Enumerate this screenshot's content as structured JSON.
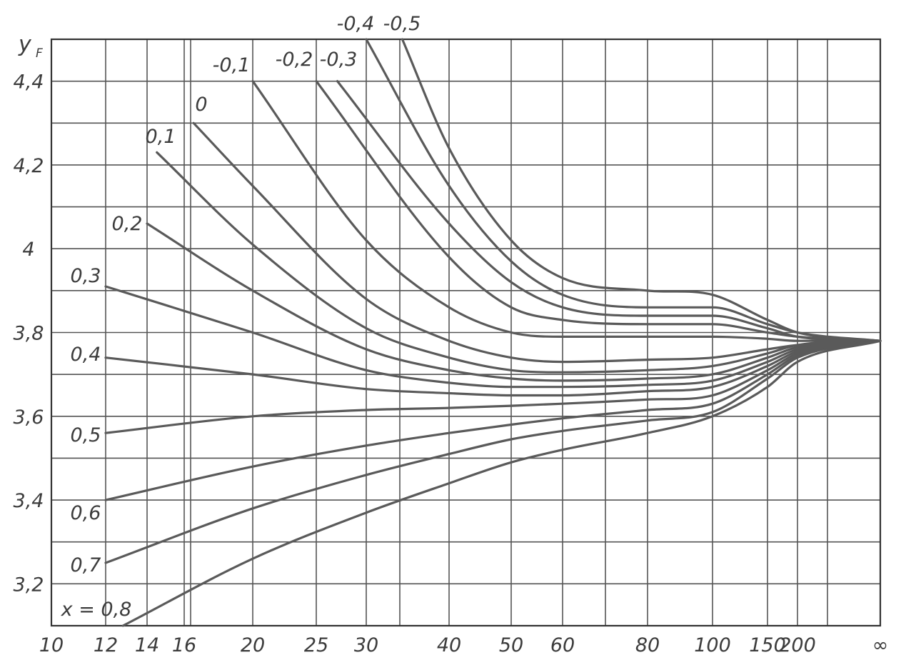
{
  "chart_data": {
    "type": "line",
    "title": "",
    "ylabel": "y",
    "ylabel_sub": "F",
    "xlabel": "",
    "x_scale": "piecewise",
    "ylim": [
      3.1,
      4.5
    ],
    "grid": true,
    "legend": "labels placed at curve starts",
    "x_tick_labels": [
      "10",
      "12",
      "14",
      "16",
      "20",
      "25",
      "30",
      "40",
      "50",
      "60",
      "80",
      "100",
      "150",
      "200",
      "∞"
    ],
    "y_tick_labels": [
      {
        "value": 3.2,
        "label": "3,2"
      },
      {
        "value": 3.4,
        "label": "3,4"
      },
      {
        "value": 3.6,
        "label": "3,6"
      },
      {
        "value": 3.8,
        "label": "3,8"
      },
      {
        "value": 4.0,
        "label": "4"
      },
      {
        "value": 4.2,
        "label": "4,2"
      },
      {
        "value": 4.4,
        "label": "4,4"
      }
    ],
    "series": [
      {
        "name": "-0,5",
        "points": [
          [
            34,
            4.5
          ],
          [
            40,
            4.24
          ],
          [
            50,
            4.02
          ],
          [
            60,
            3.93
          ],
          [
            80,
            3.9
          ],
          [
            100,
            3.89
          ],
          [
            150,
            3.83
          ],
          [
            200,
            3.8
          ],
          [
            "∞",
            3.78
          ]
        ]
      },
      {
        "name": "-0,4",
        "points": [
          [
            30,
            4.5
          ],
          [
            40,
            4.15
          ],
          [
            50,
            3.97
          ],
          [
            60,
            3.89
          ],
          [
            80,
            3.86
          ],
          [
            100,
            3.86
          ],
          [
            150,
            3.82
          ],
          [
            200,
            3.8
          ],
          [
            "∞",
            3.78
          ]
        ]
      },
      {
        "name": "-0,3",
        "points": [
          [
            27,
            4.4
          ],
          [
            40,
            4.06
          ],
          [
            50,
            3.92
          ],
          [
            60,
            3.86
          ],
          [
            80,
            3.84
          ],
          [
            100,
            3.84
          ],
          [
            150,
            3.81
          ],
          [
            200,
            3.79
          ],
          [
            "∞",
            3.78
          ]
        ]
      },
      {
        "name": "-0,2",
        "points": [
          [
            25,
            4.4
          ],
          [
            40,
            3.98
          ],
          [
            50,
            3.86
          ],
          [
            60,
            3.83
          ],
          [
            80,
            3.82
          ],
          [
            100,
            3.82
          ],
          [
            150,
            3.8
          ],
          [
            200,
            3.79
          ],
          [
            "∞",
            3.78
          ]
        ]
      },
      {
        "name": "-0,1",
        "points": [
          [
            20,
            4.4
          ],
          [
            30,
            4.02
          ],
          [
            40,
            3.86
          ],
          [
            50,
            3.8
          ],
          [
            60,
            3.79
          ],
          [
            80,
            3.79
          ],
          [
            100,
            3.79
          ],
          [
            150,
            3.785
          ],
          [
            200,
            3.78
          ],
          [
            "∞",
            3.78
          ]
        ]
      },
      {
        "name": "0",
        "points": [
          [
            16.5,
            4.3
          ],
          [
            20,
            4.15
          ],
          [
            30,
            3.88
          ],
          [
            40,
            3.78
          ],
          [
            50,
            3.74
          ],
          [
            60,
            3.73
          ],
          [
            80,
            3.735
          ],
          [
            100,
            3.74
          ],
          [
            150,
            3.76
          ],
          [
            200,
            3.77
          ],
          [
            "∞",
            3.78
          ]
        ]
      },
      {
        "name": "0,1",
        "points": [
          [
            14.5,
            4.23
          ],
          [
            20,
            4.01
          ],
          [
            30,
            3.81
          ],
          [
            40,
            3.74
          ],
          [
            50,
            3.71
          ],
          [
            60,
            3.705
          ],
          [
            80,
            3.71
          ],
          [
            100,
            3.72
          ],
          [
            150,
            3.75
          ],
          [
            200,
            3.77
          ],
          [
            "∞",
            3.78
          ]
        ]
      },
      {
        "name": "0,2",
        "points": [
          [
            14,
            4.06
          ],
          [
            20,
            3.9
          ],
          [
            30,
            3.76
          ],
          [
            40,
            3.71
          ],
          [
            50,
            3.69
          ],
          [
            60,
            3.685
          ],
          [
            80,
            3.69
          ],
          [
            100,
            3.7
          ],
          [
            150,
            3.74
          ],
          [
            200,
            3.765
          ],
          [
            "∞",
            3.78
          ]
        ]
      },
      {
        "name": "0,3",
        "points": [
          [
            12,
            3.91
          ],
          [
            20,
            3.8
          ],
          [
            30,
            3.71
          ],
          [
            40,
            3.68
          ],
          [
            50,
            3.67
          ],
          [
            60,
            3.67
          ],
          [
            80,
            3.675
          ],
          [
            100,
            3.685
          ],
          [
            150,
            3.73
          ],
          [
            200,
            3.76
          ],
          [
            "∞",
            3.78
          ]
        ]
      },
      {
        "name": "0,4",
        "points": [
          [
            12,
            3.74
          ],
          [
            20,
            3.7
          ],
          [
            30,
            3.665
          ],
          [
            40,
            3.655
          ],
          [
            50,
            3.65
          ],
          [
            60,
            3.65
          ],
          [
            80,
            3.66
          ],
          [
            100,
            3.67
          ],
          [
            150,
            3.72
          ],
          [
            200,
            3.755
          ],
          [
            "∞",
            3.78
          ]
        ]
      },
      {
        "name": "0,5",
        "points": [
          [
            12,
            3.56
          ],
          [
            20,
            3.6
          ],
          [
            30,
            3.615
          ],
          [
            40,
            3.62
          ],
          [
            50,
            3.625
          ],
          [
            60,
            3.63
          ],
          [
            80,
            3.64
          ],
          [
            100,
            3.65
          ],
          [
            150,
            3.71
          ],
          [
            200,
            3.75
          ],
          [
            "∞",
            3.78
          ]
        ]
      },
      {
        "name": "0,6",
        "points": [
          [
            12,
            3.4
          ],
          [
            20,
            3.48
          ],
          [
            30,
            3.53
          ],
          [
            40,
            3.56
          ],
          [
            50,
            3.58
          ],
          [
            60,
            3.595
          ],
          [
            80,
            3.615
          ],
          [
            100,
            3.63
          ],
          [
            150,
            3.7
          ],
          [
            200,
            3.745
          ],
          [
            "∞",
            3.78
          ]
        ]
      },
      {
        "name": "0,7",
        "points": [
          [
            12,
            3.25
          ],
          [
            20,
            3.38
          ],
          [
            30,
            3.46
          ],
          [
            40,
            3.51
          ],
          [
            50,
            3.545
          ],
          [
            60,
            3.565
          ],
          [
            80,
            3.59
          ],
          [
            100,
            3.61
          ],
          [
            150,
            3.69
          ],
          [
            200,
            3.74
          ],
          [
            "∞",
            3.78
          ]
        ]
      },
      {
        "name": "x = 0,8",
        "points": [
          [
            12.8,
            3.1
          ],
          [
            20,
            3.26
          ],
          [
            30,
            3.37
          ],
          [
            40,
            3.44
          ],
          [
            50,
            3.49
          ],
          [
            60,
            3.52
          ],
          [
            80,
            3.56
          ],
          [
            100,
            3.6
          ],
          [
            150,
            3.67
          ],
          [
            200,
            3.73
          ],
          [
            "∞",
            3.78
          ]
        ]
      }
    ]
  }
}
